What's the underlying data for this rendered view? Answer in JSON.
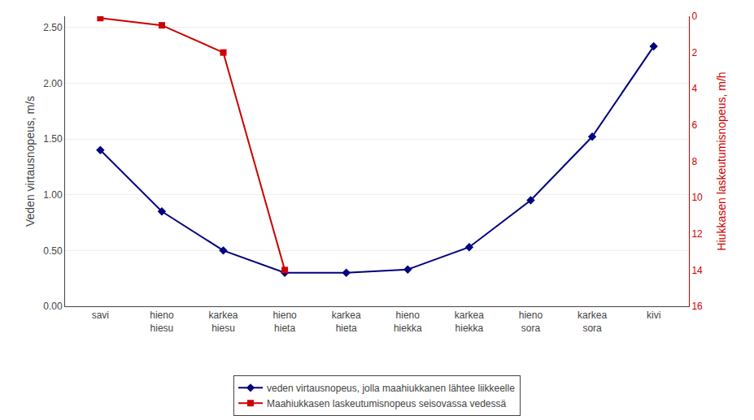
{
  "chart_data": {
    "type": "line",
    "categories": [
      "savi",
      "hieno\nhiesu",
      "karkea\nhiesu",
      "hieno\nhieta",
      "karkea\nhieta",
      "hieno\nhiekka",
      "karkea\nhiekka",
      "hieno\nsora",
      "karkea\nsora",
      "kivi"
    ],
    "series": [
      {
        "name": "veden virtausnopeus, jolla maahiukkanen lähtee liikkeelle",
        "color": "#000080",
        "marker": "diamond",
        "values": [
          1.4,
          0.85,
          0.5,
          0.3,
          0.3,
          0.33,
          0.53,
          0.95,
          1.52,
          2.33
        ]
      },
      {
        "name": "Maahiukkasen laskeutumisnopeus seisovassa vedessä",
        "color": "#cc0000",
        "marker": "square",
        "axis": "y2",
        "values": [
          0.1,
          0.5,
          2.0,
          14.0,
          null,
          null,
          null,
          null,
          null,
          null
        ]
      }
    ],
    "ylabel": "Veden virtausnopeus, m/s",
    "y2label": "Hiukkasen laskeutumisnopeus, m/h",
    "ylim": [
      0.0,
      2.6
    ],
    "yticks": [
      {
        "value": 0.0,
        "label": "0.00"
      },
      {
        "value": 0.5,
        "label": "0.50"
      },
      {
        "value": 1.0,
        "label": "1.00"
      },
      {
        "value": 1.5,
        "label": "1.50"
      },
      {
        "value": 2.0,
        "label": "2.00"
      },
      {
        "value": 2.5,
        "label": "2.50"
      }
    ],
    "y2lim": [
      16,
      0
    ],
    "y2ticks": [
      0,
      2,
      4,
      6,
      8,
      10,
      12,
      14,
      16
    ],
    "grid": true,
    "legend": "bottom"
  }
}
